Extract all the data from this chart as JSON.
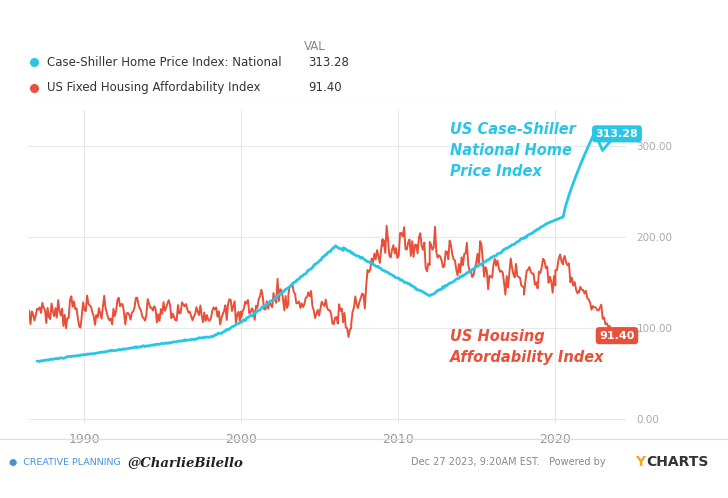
{
  "bg_color": "#ffffff",
  "plot_bg_color": "#ffffff",
  "grid_color": "#e8e8e8",
  "cyan_color": "#29c5e6",
  "red_color": "#e8503a",
  "legend_items": [
    {
      "label": "Case-Shiller Home Price Index: National",
      "val": "313.28",
      "color": "#29c5e6"
    },
    {
      "label": "US Fixed Housing Affordability Index",
      "val": "91.40",
      "color": "#e8503a"
    }
  ],
  "annotation_cyan": "US Case-Shiller\nNational Home\nPrice Index",
  "annotation_red": "US Housing\nAffordability Index",
  "cyan_end_label": "313.28",
  "red_end_label": "91.40",
  "x_ticks": [
    1990,
    2000,
    2010,
    2020
  ],
  "y_ticks": [
    0.0,
    100.0,
    200.0,
    300.0
  ],
  "y_tick_labels": [
    "0.00",
    "100.00",
    "200.00",
    "300.00"
  ],
  "ylim": [
    -5,
    340
  ],
  "xlim_start": 1986.5,
  "xlim_end": 2024.5
}
